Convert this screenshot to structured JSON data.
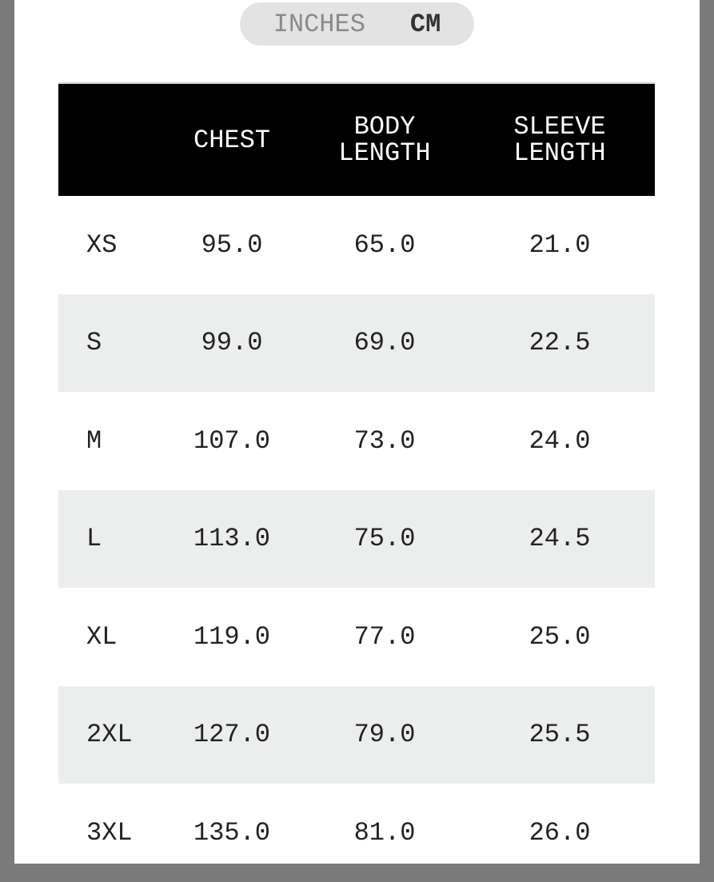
{
  "unit_toggle": {
    "options": [
      "INCHES",
      "CM"
    ],
    "selected": "CM"
  },
  "table": {
    "headers": [
      "",
      "CHEST",
      "BODY\nLENGTH",
      "SLEEVE\nLENGTH"
    ],
    "rows": [
      [
        "XS",
        "95.0",
        "65.0",
        "21.0"
      ],
      [
        "S",
        "99.0",
        "69.0",
        "22.5"
      ],
      [
        "M",
        "107.0",
        "73.0",
        "24.0"
      ],
      [
        "L",
        "113.0",
        "75.0",
        "24.5"
      ],
      [
        "XL",
        "119.0",
        "77.0",
        "25.0"
      ],
      [
        "2XL",
        "127.0",
        "79.0",
        "25.5"
      ],
      [
        "3XL",
        "135.0",
        "81.0",
        "26.0"
      ]
    ]
  }
}
